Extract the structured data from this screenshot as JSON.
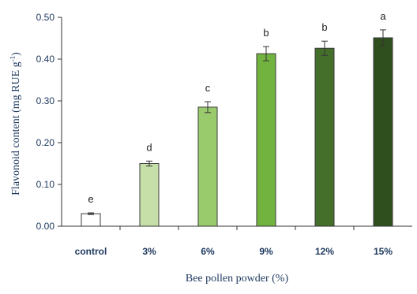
{
  "chart_data": {
    "type": "bar",
    "title": "",
    "xlabel": "Bee pollen powder (%)",
    "ylabel": "Flavonoid content (mg RUE g",
    "ylabel_sup": "-1",
    "ylabel_close": ")",
    "ylim": [
      0,
      0.5
    ],
    "yticks": [
      "0.00",
      "0.10",
      "0.20",
      "0.30",
      "0.40",
      "0.50"
    ],
    "categories": [
      "control",
      "3%",
      "6%",
      "9%",
      "12%",
      "15%"
    ],
    "values": [
      0.03,
      0.15,
      0.285,
      0.413,
      0.426,
      0.451
    ],
    "errors": [
      0.002,
      0.006,
      0.013,
      0.017,
      0.017,
      0.019
    ],
    "significance": [
      "e",
      "d",
      "c",
      "b",
      "b",
      "a"
    ],
    "bar_fill_colors": [
      "#ffffff",
      "#c6dfa9",
      "#99cb6d",
      "#72b23f",
      "#446f2b",
      "#304f1f"
    ],
    "bar_stroke_color": "#3a3a3a",
    "grid": false,
    "legend": "none"
  }
}
